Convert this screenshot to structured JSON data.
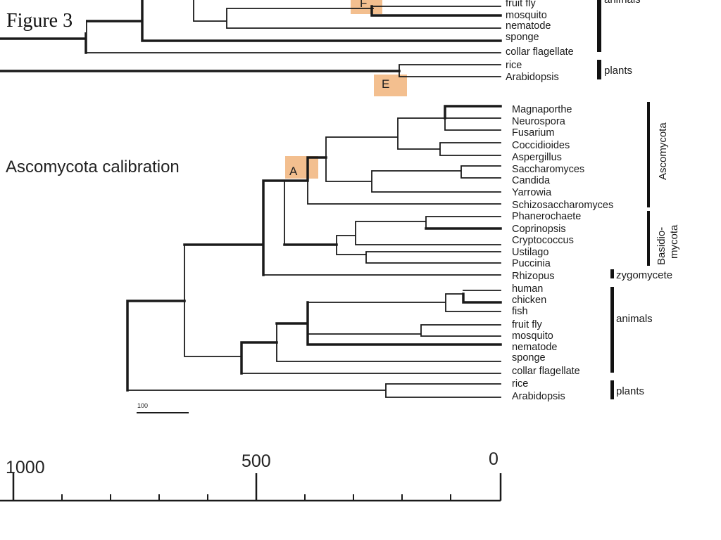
{
  "figure_label": "Figure 3",
  "calibration_label": "Ascomycota calibration",
  "scale_bar_label": "100",
  "highlight_color": "#f3bf8f",
  "top_tree": {
    "leaves": [
      "fruit fly",
      "mosquito",
      "nematode",
      "sponge",
      "collar flagellate",
      "rice",
      "Arabidopsis"
    ],
    "groups": [
      "animals",
      "plants"
    ],
    "node_boxes": [
      "F",
      "E"
    ]
  },
  "main_tree": {
    "leaves": [
      "Magnaporthe",
      "Neurospora",
      "Fusarium",
      "Coccidioides",
      "Aspergillus",
      "Saccharomyces",
      "Candida",
      "Yarrowia",
      "Schizosaccharomyces",
      "Phanerochaete",
      "Coprinopsis",
      "Cryptococcus",
      "Ustilago",
      "Puccinia",
      "Rhizopus",
      "human",
      "chicken",
      "fish",
      "fruit fly",
      "mosquito",
      "nematode",
      "sponge",
      "collar flagellate",
      "rice",
      "Arabidopsis"
    ],
    "groups": [
      "Ascomycota",
      "Basidio-",
      "mycota",
      "zygomycete",
      "animals",
      "plants"
    ],
    "node_boxes": [
      "A"
    ]
  },
  "time_axis": {
    "tick_labels": [
      "1000",
      "500",
      "0"
    ]
  }
}
